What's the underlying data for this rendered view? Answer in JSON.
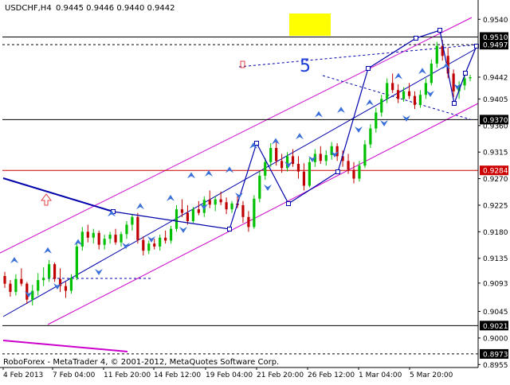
{
  "header": {
    "symbol": "USDCHF,H4",
    "ohlc": "0.9445 0.9446 0.9440 0.9442"
  },
  "footer": {
    "copyright": "RoboForex - MetaTrader 4, © 2001-2012, MetaQuotes Software Corp."
  },
  "colors": {
    "up_candle": "#00c000",
    "down_candle": "#c00000",
    "channel": "#cc00cc",
    "wave": "#0000aa",
    "arrows": "#3a6fd8",
    "support_line": "#000000",
    "red_line": "#cc0000",
    "target_box": "#ffff00"
  },
  "chart_data": {
    "type": "candlestick",
    "x_labels": [
      "4 Feb 2013",
      "7 Feb 04:00",
      "11 Feb 20:00",
      "14 Feb 12:00",
      "19 Feb 04:00",
      "21 Feb 20:00",
      "26 Feb 12:00",
      "1 Mar 04:00",
      "5 Mar 20:00"
    ],
    "y_ticks": [
      0.954,
      0.9497,
      0.9442,
      0.9405,
      0.936,
      0.9315,
      0.927,
      0.9225,
      0.918,
      0.9135,
      0.9093,
      0.9045,
      0.9,
      0.8955
    ],
    "ylim": [
      0.895,
      0.957
    ],
    "marked_levels": [
      {
        "value": 0.951,
        "label": "0.9510",
        "style": "solid-black"
      },
      {
        "value": 0.9497,
        "label": "0.9497",
        "style": "dashed-black"
      },
      {
        "value": 0.937,
        "label": "0.9370",
        "style": "solid-black"
      },
      {
        "value": 0.9284,
        "label": "0.9284",
        "style": "solid-red"
      },
      {
        "value": 0.9021,
        "label": "0.9021",
        "style": "solid-black"
      },
      {
        "value": 0.8973,
        "label": "0.8973",
        "style": "dashed-black"
      }
    ],
    "wave_label": "5",
    "candles": [
      [
        0.9105,
        0.9112,
        0.9085,
        0.9092
      ],
      [
        0.9092,
        0.9098,
        0.907,
        0.9078
      ],
      [
        0.9078,
        0.9108,
        0.9072,
        0.91
      ],
      [
        0.91,
        0.9118,
        0.9088,
        0.9092
      ],
      [
        0.9092,
        0.9095,
        0.9058,
        0.9065
      ],
      [
        0.9065,
        0.909,
        0.9055,
        0.908
      ],
      [
        0.908,
        0.911,
        0.9072,
        0.9098
      ],
      [
        0.9098,
        0.912,
        0.9088,
        0.9102
      ],
      [
        0.9102,
        0.9132,
        0.9095,
        0.9125
      ],
      [
        0.9125,
        0.9128,
        0.9095,
        0.91
      ],
      [
        0.91,
        0.9118,
        0.9078,
        0.9088
      ],
      [
        0.9088,
        0.9095,
        0.9068,
        0.908
      ],
      [
        0.908,
        0.9108,
        0.9075,
        0.9102
      ],
      [
        0.9102,
        0.9162,
        0.9098,
        0.9155
      ],
      [
        0.9155,
        0.9188,
        0.9148,
        0.918
      ],
      [
        0.918,
        0.9192,
        0.9162,
        0.917
      ],
      [
        0.917,
        0.9185,
        0.916,
        0.9178
      ],
      [
        0.9178,
        0.9182,
        0.915,
        0.9158
      ],
      [
        0.9158,
        0.9175,
        0.915,
        0.9168
      ],
      [
        0.9168,
        0.918,
        0.916,
        0.9175
      ],
      [
        0.9175,
        0.9185,
        0.9158,
        0.9162
      ],
      [
        0.9162,
        0.918,
        0.9155,
        0.9176
      ],
      [
        0.9176,
        0.9198,
        0.9168,
        0.9192
      ],
      [
        0.9192,
        0.921,
        0.9182,
        0.9205
      ],
      [
        0.9205,
        0.9212,
        0.916,
        0.9166
      ],
      [
        0.9166,
        0.9172,
        0.914,
        0.9148
      ],
      [
        0.9148,
        0.9165,
        0.9142,
        0.916
      ],
      [
        0.916,
        0.9168,
        0.915,
        0.9155
      ],
      [
        0.9155,
        0.9175,
        0.9148,
        0.917
      ],
      [
        0.917,
        0.9182,
        0.916,
        0.9165
      ],
      [
        0.9165,
        0.919,
        0.916,
        0.9185
      ],
      [
        0.9185,
        0.9225,
        0.918,
        0.9218
      ],
      [
        0.9218,
        0.9235,
        0.9205,
        0.9212
      ],
      [
        0.9212,
        0.9225,
        0.9192,
        0.9198
      ],
      [
        0.9198,
        0.9222,
        0.9195,
        0.9218
      ],
      [
        0.9218,
        0.9232,
        0.9208,
        0.9212
      ],
      [
        0.9212,
        0.924,
        0.9205,
        0.9234
      ],
      [
        0.9234,
        0.925,
        0.922,
        0.9226
      ],
      [
        0.9226,
        0.924,
        0.9215,
        0.9235
      ],
      [
        0.9235,
        0.9248,
        0.9225,
        0.923
      ],
      [
        0.923,
        0.9238,
        0.921,
        0.9218
      ],
      [
        0.9218,
        0.9232,
        0.9212,
        0.9228
      ],
      [
        0.9228,
        0.924,
        0.922,
        0.9225
      ],
      [
        0.9225,
        0.9232,
        0.9195,
        0.9205
      ],
      [
        0.9205,
        0.9215,
        0.918,
        0.9188
      ],
      [
        0.9188,
        0.9242,
        0.9185,
        0.9236
      ],
      [
        0.9236,
        0.9282,
        0.923,
        0.9275
      ],
      [
        0.9275,
        0.9305,
        0.9268,
        0.9298
      ],
      [
        0.9298,
        0.933,
        0.929,
        0.9322
      ],
      [
        0.9322,
        0.9335,
        0.9292,
        0.93
      ],
      [
        0.93,
        0.9312,
        0.928,
        0.9288
      ],
      [
        0.9288,
        0.9315,
        0.9282,
        0.9308
      ],
      [
        0.9308,
        0.932,
        0.929,
        0.9295
      ],
      [
        0.9295,
        0.9308,
        0.927,
        0.9282
      ],
      [
        0.9282,
        0.9296,
        0.925,
        0.9258
      ],
      [
        0.9258,
        0.9305,
        0.9255,
        0.9298
      ],
      [
        0.9298,
        0.932,
        0.929,
        0.9312
      ],
      [
        0.9312,
        0.9325,
        0.9295,
        0.93
      ],
      [
        0.93,
        0.9318,
        0.9292,
        0.931
      ],
      [
        0.931,
        0.9332,
        0.9302,
        0.9325
      ],
      [
        0.9325,
        0.933,
        0.93,
        0.9308
      ],
      [
        0.9308,
        0.9318,
        0.929,
        0.93
      ],
      [
        0.93,
        0.9312,
        0.9278,
        0.9285
      ],
      [
        0.9285,
        0.9298,
        0.9262,
        0.927
      ],
      [
        0.927,
        0.93,
        0.9265,
        0.9292
      ],
      [
        0.9292,
        0.9335,
        0.9288,
        0.9328
      ],
      [
        0.9328,
        0.9362,
        0.9322,
        0.9355
      ],
      [
        0.9355,
        0.939,
        0.9348,
        0.9382
      ],
      [
        0.9382,
        0.9412,
        0.9375,
        0.9405
      ],
      [
        0.9405,
        0.944,
        0.9398,
        0.9432
      ],
      [
        0.9432,
        0.9448,
        0.9415,
        0.942
      ],
      [
        0.942,
        0.943,
        0.9398,
        0.9405
      ],
      [
        0.9405,
        0.9425,
        0.94,
        0.9418
      ],
      [
        0.9418,
        0.9432,
        0.9405,
        0.941
      ],
      [
        0.941,
        0.9418,
        0.9388,
        0.9395
      ],
      [
        0.9395,
        0.942,
        0.939,
        0.9412
      ],
      [
        0.9412,
        0.944,
        0.9405,
        0.9432
      ],
      [
        0.9432,
        0.9472,
        0.9428,
        0.9465
      ],
      [
        0.9465,
        0.9502,
        0.9458,
        0.9495
      ],
      [
        0.9495,
        0.9505,
        0.947,
        0.9478
      ],
      [
        0.9478,
        0.9492,
        0.944,
        0.9448
      ],
      [
        0.9448,
        0.9455,
        0.9408,
        0.9418
      ],
      [
        0.9418,
        0.9435,
        0.9405,
        0.9428
      ],
      [
        0.9428,
        0.9448,
        0.942,
        0.944
      ],
      [
        0.944,
        0.9446,
        0.9435,
        0.9442
      ]
    ]
  }
}
